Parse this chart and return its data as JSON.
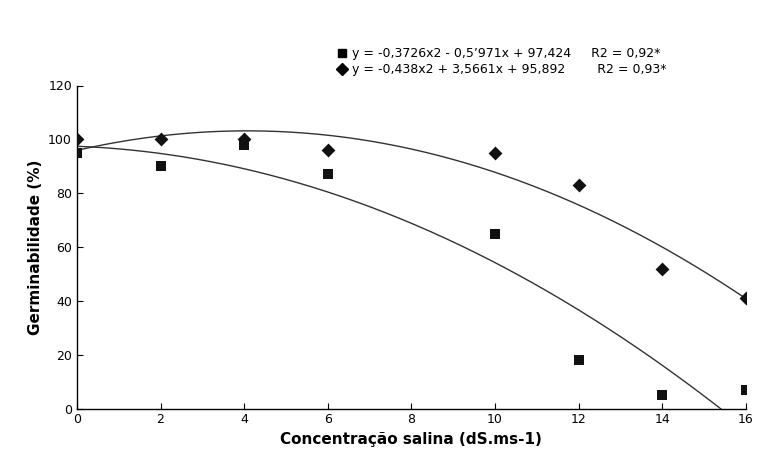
{
  "title": "",
  "xlabel": "Concentração salina (dS.ms-1)",
  "ylabel": "Germinabilidade (%)",
  "ylim": [
    0,
    120
  ],
  "xlim": [
    0,
    16
  ],
  "xticks": [
    0,
    2,
    4,
    6,
    8,
    10,
    12,
    14,
    16
  ],
  "yticks": [
    0,
    20,
    40,
    60,
    80,
    100,
    120
  ],
  "no_x": [
    0,
    2,
    4,
    6,
    10,
    12,
    14,
    16
  ],
  "no_y": [
    95,
    90,
    98,
    87,
    65,
    18,
    5,
    7
  ],
  "os_x": [
    0,
    2,
    4,
    6,
    10,
    12,
    14,
    16
  ],
  "os_y": [
    100,
    100,
    100,
    96,
    95,
    83,
    52,
    41
  ],
  "no_eq": {
    "a": -0.3726,
    "b": -0.5971,
    "c": 97.424
  },
  "os_eq": {
    "a": -0.438,
    "b": 3.5661,
    "c": 95.892
  },
  "legend_no_label": "y = -0,3726x2 - 0,5’971x + 97,424     R2 = 0,92*",
  "legend_os_label": "y = -0,438x2 + 3,5661x + 95,892        R2 = 0,93*",
  "line_color": "#333333",
  "marker_color": "#111111",
  "background_color": "#ffffff",
  "legend_fontsize": 9,
  "xlabel_fontsize": 11,
  "ylabel_fontsize": 11
}
